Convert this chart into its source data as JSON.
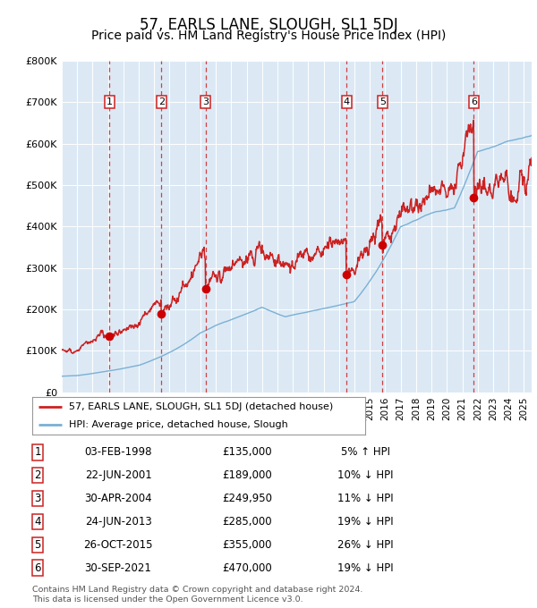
{
  "title": "57, EARLS LANE, SLOUGH, SL1 5DJ",
  "subtitle": "Price paid vs. HM Land Registry's House Price Index (HPI)",
  "title_fontsize": 12,
  "subtitle_fontsize": 10,
  "background_color": "#ffffff",
  "plot_bg_color": "#dce9f5",
  "grid_color": "#ffffff",
  "ylim": [
    0,
    800000
  ],
  "yticks": [
    0,
    100000,
    200000,
    300000,
    400000,
    500000,
    600000,
    700000,
    800000
  ],
  "ytick_labels": [
    "£0",
    "£100K",
    "£200K",
    "£300K",
    "£400K",
    "£500K",
    "£600K",
    "£700K",
    "£800K"
  ],
  "xlim_start": 1995.0,
  "xlim_end": 2025.5,
  "hpi_color": "#7ab0d4",
  "price_color": "#cc2222",
  "sale_marker_color": "#cc0000",
  "sale_marker_size": 7,
  "dashed_line_color": "#cc2222",
  "sale_transactions": [
    {
      "num": 1,
      "date_x": 1998.09,
      "price": 135000
    },
    {
      "num": 2,
      "date_x": 2001.47,
      "price": 189000
    },
    {
      "num": 3,
      "date_x": 2004.33,
      "price": 249950
    },
    {
      "num": 4,
      "date_x": 2013.48,
      "price": 285000
    },
    {
      "num": 5,
      "date_x": 2015.82,
      "price": 355000
    },
    {
      "num": 6,
      "date_x": 2021.75,
      "price": 470000
    }
  ],
  "legend_entries": [
    "57, EARLS LANE, SLOUGH, SL1 5DJ (detached house)",
    "HPI: Average price, detached house, Slough"
  ],
  "table_rows": [
    [
      "1",
      "03-FEB-1998",
      "£135,000",
      "5% ↑ HPI"
    ],
    [
      "2",
      "22-JUN-2001",
      "£189,000",
      "10% ↓ HPI"
    ],
    [
      "3",
      "30-APR-2004",
      "£249,950",
      "11% ↓ HPI"
    ],
    [
      "4",
      "24-JUN-2013",
      "£285,000",
      "19% ↓ HPI"
    ],
    [
      "5",
      "26-OCT-2015",
      "£355,000",
      "26% ↓ HPI"
    ],
    [
      "6",
      "30-SEP-2021",
      "£470,000",
      "19% ↓ HPI"
    ]
  ],
  "footer": "Contains HM Land Registry data © Crown copyright and database right 2024.\nThis data is licensed under the Open Government Licence v3.0."
}
